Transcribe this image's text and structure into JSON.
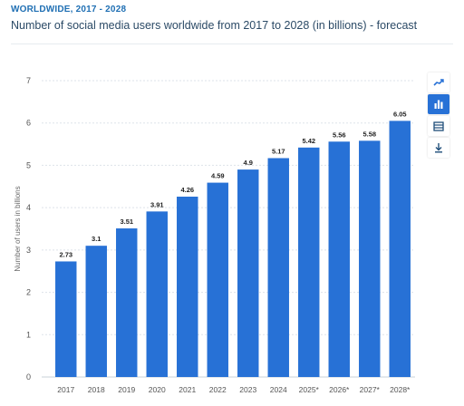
{
  "header": {
    "kicker": "WORLDWIDE, 2017 - 2028",
    "title": "Number of social media users worldwide from 2017 to 2028 (in billions) - forecast"
  },
  "toolbar": {
    "items": [
      {
        "icon": "trend-line-icon",
        "active": false
      },
      {
        "icon": "bar-chart-icon",
        "active": true
      },
      {
        "icon": "table-icon",
        "active": false
      },
      {
        "icon": "download-icon",
        "active": false
      }
    ]
  },
  "colors": {
    "bar": "#2771d6",
    "accent": "#1f6fb3",
    "grid": "#dde3ea",
    "axis_text": "#555555"
  },
  "chart_data": {
    "type": "bar",
    "title": "Number of social media users worldwide from 2017 to 2028 (in billions) - forecast",
    "xlabel": "",
    "ylabel": "Number of users in billions",
    "categories": [
      "2017",
      "2018",
      "2019",
      "2020",
      "2021",
      "2022",
      "2023",
      "2024",
      "2025*",
      "2026*",
      "2027*",
      "2028*"
    ],
    "values": [
      2.73,
      3.1,
      3.51,
      3.91,
      4.26,
      4.59,
      4.9,
      5.17,
      5.42,
      5.56,
      5.58,
      6.05
    ],
    "data_labels": [
      "2.73",
      "3.1",
      "3.51",
      "3.91",
      "4.26",
      "4.59",
      "4.9",
      "5.17",
      "5.42",
      "5.56",
      "5.58",
      "6.05"
    ],
    "yticks": [
      "0",
      "1",
      "2",
      "3",
      "4",
      "5",
      "6",
      "7"
    ],
    "ylim": [
      0,
      7
    ],
    "grid": true,
    "legend": "none"
  }
}
